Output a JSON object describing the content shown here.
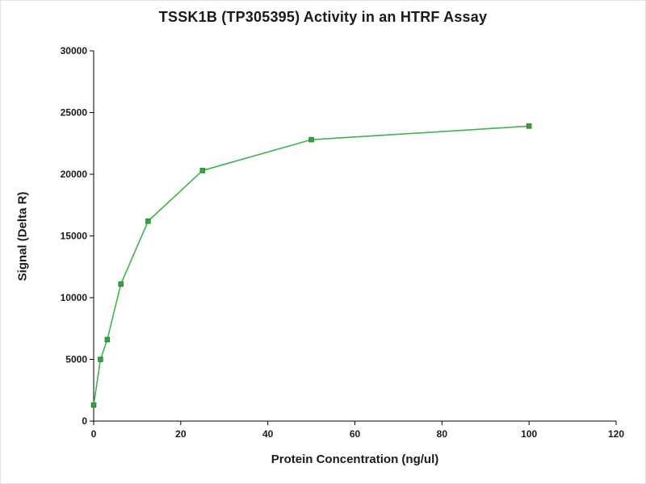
{
  "chart_data": {
    "type": "line",
    "title": "TSSK1B (TP305395) Activity in an HTRF Assay",
    "xlabel": "Protein Concentration (ng/ul)",
    "ylabel": "Signal (Delta R)",
    "x": [
      0,
      1.5625,
      3.125,
      6.25,
      12.5,
      25,
      50,
      100
    ],
    "series": [
      {
        "name": "Signal (Delta R)",
        "values": [
          1300,
          5000,
          6600,
          11100,
          16200,
          20300,
          22800,
          23900
        ]
      }
    ],
    "xlim": [
      0,
      120
    ],
    "ylim": [
      0,
      30000
    ],
    "x_ticks": [
      0,
      20,
      40,
      60,
      80,
      100,
      120
    ],
    "y_ticks": [
      0,
      5000,
      10000,
      15000,
      20000,
      25000,
      30000
    ],
    "grid": false,
    "legend": "none",
    "line_color": "#3cb44b",
    "marker": "square",
    "marker_color": "#35a341",
    "marker_edge_color": "#2a8534",
    "axis_color": "#000000"
  }
}
